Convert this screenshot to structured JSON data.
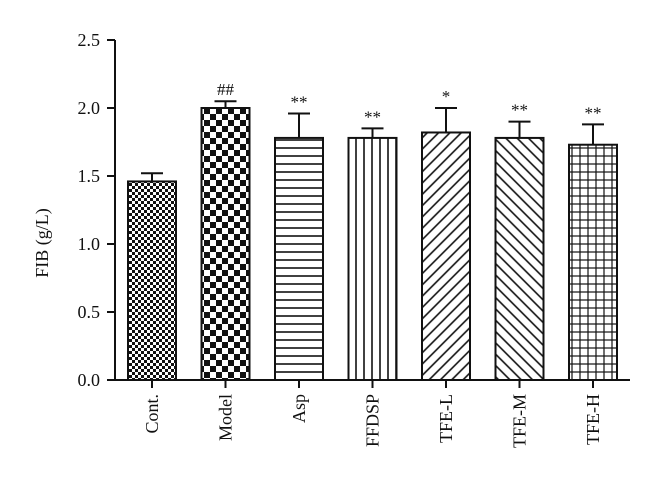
{
  "chart_data": {
    "type": "bar",
    "categories": [
      "Cont.",
      "Model",
      "Asp",
      "FFDSP",
      "TFE-L",
      "TFE-M",
      "TFE-H"
    ],
    "values": [
      1.46,
      2.0,
      1.78,
      1.78,
      1.82,
      1.78,
      1.73
    ],
    "errors": [
      0.06,
      0.05,
      0.18,
      0.07,
      0.18,
      0.12,
      0.15
    ],
    "annotations": [
      "",
      "##",
      "**",
      "**",
      "*",
      "**",
      "**"
    ],
    "patterns": [
      "fine-checker",
      "checker",
      "horizontal-lines",
      "vertical-lines",
      "diagonal-right",
      "diagonal-left",
      "grid"
    ],
    "xlabel": "",
    "ylabel": "FIB (g/L)",
    "ylim": [
      0,
      2.5
    ],
    "yticks": [
      "0.0",
      "0.5",
      "1.0",
      "1.5",
      "2.0",
      "2.5"
    ],
    "grid": false,
    "colors": {
      "ink": "#111111",
      "fill": "#ffffff"
    }
  }
}
